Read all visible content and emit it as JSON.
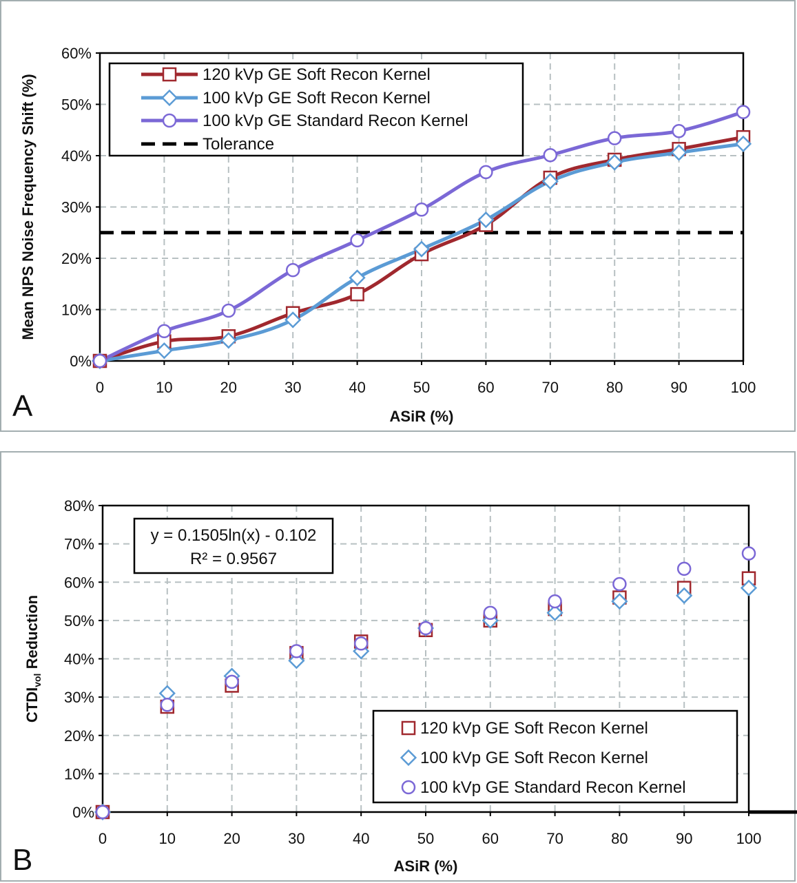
{
  "chart_data": [
    {
      "type": "line",
      "panel_label": "A",
      "xlabel": "ASiR (%)",
      "ylabel": "Mean NPS Noise Frequency Shift (%)",
      "xlim": [
        0,
        100
      ],
      "ylim": [
        0,
        60
      ],
      "x_ticks": [
        "0",
        "10",
        "20",
        "30",
        "40",
        "50",
        "60",
        "70",
        "80",
        "90",
        "100"
      ],
      "y_ticks": [
        "0%",
        "10%",
        "20%",
        "30%",
        "40%",
        "50%",
        "60%"
      ],
      "grid": true,
      "legend_position": "top-left",
      "x": [
        0,
        10,
        20,
        30,
        40,
        50,
        60,
        70,
        80,
        90,
        100
      ],
      "series": [
        {
          "name": "120 kVp GE Soft Recon Kernel",
          "color": "#a0282e",
          "marker": "square",
          "values": [
            0,
            3.8,
            4.8,
            9.3,
            13,
            20.8,
            26.5,
            35.7,
            39.2,
            41.3,
            43.6
          ]
        },
        {
          "name": "100 kVp GE Soft Recon Kernel",
          "color": "#5b9bd5",
          "marker": "diamond",
          "values": [
            0,
            2,
            4,
            8,
            16.2,
            21.8,
            27.5,
            35,
            38.7,
            40.6,
            42.3
          ]
        },
        {
          "name": "100 kVp GE Standard Recon Kernel",
          "color": "#7b68d6",
          "marker": "circle",
          "values": [
            0,
            5.8,
            9.8,
            17.7,
            23.5,
            29.5,
            36.8,
            40.1,
            43.4,
            44.8,
            48.5
          ]
        }
      ],
      "reference_line": {
        "name": "Tolerance",
        "y": 25,
        "color": "#000000",
        "style": "dashed"
      }
    },
    {
      "type": "scatter",
      "panel_label": "B",
      "xlabel": "ASiR (%)",
      "ylabel_main": "CTDI",
      "ylabel_sub": "vol",
      "ylabel_rest": " Reduction",
      "xlim": [
        0,
        100
      ],
      "ylim": [
        0,
        80
      ],
      "x_ticks": [
        "0",
        "10",
        "20",
        "30",
        "40",
        "50",
        "60",
        "70",
        "80",
        "90",
        "100"
      ],
      "y_ticks": [
        "0%",
        "10%",
        "20%",
        "30%",
        "40%",
        "50%",
        "60%",
        "70%",
        "80%"
      ],
      "grid": true,
      "legend_position": "bottom-right",
      "x": [
        0,
        10,
        20,
        30,
        40,
        50,
        60,
        70,
        80,
        90,
        100
      ],
      "series": [
        {
          "name": "120 kVp GE Soft Recon Kernel",
          "color": "#a0282e",
          "marker": "square",
          "values": [
            0,
            27.5,
            33,
            41.5,
            44.5,
            47.5,
            50,
            53,
            56,
            58.5,
            61
          ]
        },
        {
          "name": "100 kVp GE Soft Recon Kernel",
          "color": "#5b9bd5",
          "marker": "diamond",
          "values": [
            0,
            31,
            35.5,
            39.5,
            42,
            48,
            50,
            52,
            55,
            56.5,
            58.5
          ]
        },
        {
          "name": "100 kVp GE Standard Recon Kernel",
          "color": "#7b68d6",
          "marker": "circle",
          "values": [
            0,
            28,
            34,
            42,
            44,
            48,
            52,
            55,
            59.5,
            63.5,
            67.5
          ]
        }
      ],
      "trendline": {
        "equation": "y = 0.1505ln(x) - 0.102",
        "r_squared": "R² = 0.9567",
        "a": 0.1505,
        "b": -0.102,
        "color": "#000000"
      }
    }
  ]
}
